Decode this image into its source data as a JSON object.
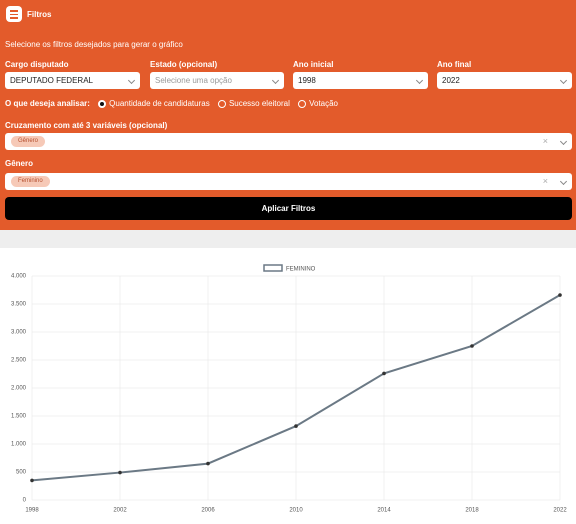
{
  "header": {
    "title": "Filtros"
  },
  "filters": {
    "instruction": "Selecione os filtros desejados para gerar o gráfico",
    "cargo": {
      "label": "Cargo disputado",
      "value": "DEPUTADO FEDERAL"
    },
    "estado": {
      "label": "Estado (opcional)",
      "placeholder": "Selecione uma opção"
    },
    "ano_inicial": {
      "label": "Ano inicial",
      "value": "1998"
    },
    "ano_final": {
      "label": "Ano final",
      "value": "2022"
    },
    "analisar": {
      "label": "O que deseja analisar:",
      "options": [
        "Quantidade de candidaturas",
        "Sucesso eleitoral",
        "Votação"
      ]
    },
    "cruzamento": {
      "label": "Cruzamento com até 3 variáveis (opcional)",
      "tags": [
        "Gênero"
      ]
    },
    "genero": {
      "label": "Gênero",
      "tags": [
        "Feminino"
      ]
    },
    "apply": "Aplicar Filtros"
  },
  "chart_data": {
    "type": "line",
    "x": [
      1998,
      2002,
      2006,
      2010,
      2014,
      2018,
      2022
    ],
    "series": [
      {
        "name": "FEMININO",
        "color": "#6b7985",
        "values": [
          350,
          490,
          650,
          1320,
          2260,
          2750,
          3660
        ]
      }
    ],
    "xlim": [
      1998,
      2022
    ],
    "xticks": [
      1998,
      2002,
      2006,
      2010,
      2014,
      2018,
      2022
    ],
    "ylim": [
      0,
      4000
    ],
    "yticks": [
      0,
      500,
      {
        "value": 1000,
        "label": "1.000"
      },
      {
        "value": 1500,
        "label": "1.500"
      },
      {
        "value": 2000,
        "label": "2.000"
      },
      {
        "value": 2500,
        "label": "2.500"
      },
      {
        "value": 3000,
        "label": "3.000"
      },
      {
        "value": 3500,
        "label": "3.500"
      },
      {
        "value": 4000,
        "label": "4.000"
      }
    ],
    "grid": true
  }
}
